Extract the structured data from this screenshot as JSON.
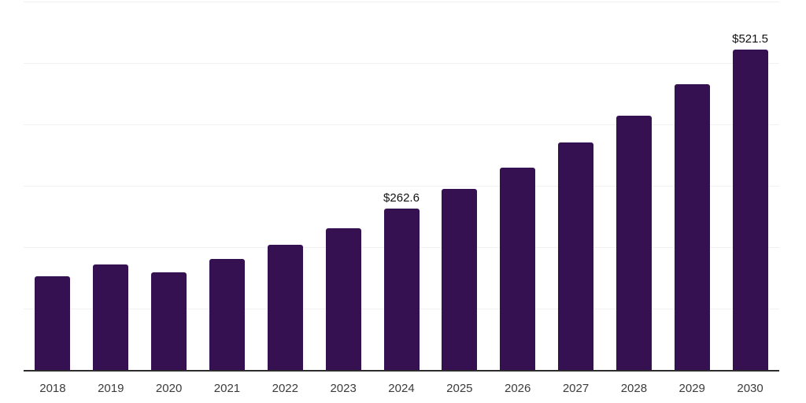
{
  "chart_data": {
    "type": "bar",
    "title": "",
    "xlabel": "",
    "ylabel": "",
    "categories": [
      "2018",
      "2019",
      "2020",
      "2021",
      "2022",
      "2023",
      "2024",
      "2025",
      "2026",
      "2027",
      "2028",
      "2029",
      "2030"
    ],
    "values": [
      152,
      172,
      158.5,
      181,
      204,
      231,
      262.6,
      294.4,
      330,
      369.9,
      414.7,
      464.9,
      521.5
    ],
    "data_labels": {
      "2024": "$262.6",
      "2030": "$521.5"
    },
    "ylim": [
      0,
      600
    ],
    "gridline_step": 100,
    "grid": "horizontal-only",
    "legend": "none",
    "colors": {
      "bar": "#361152",
      "axis": "#2d2d2d",
      "gridline": "#f1f1f1",
      "x_label": "#3c3c3c",
      "value_label": "#111111",
      "background": "#ffffff"
    }
  }
}
